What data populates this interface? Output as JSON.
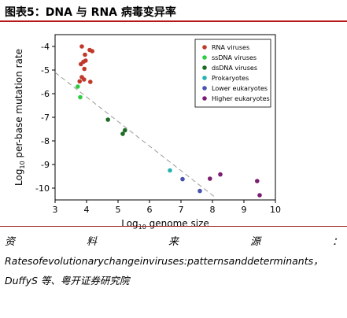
{
  "header": {
    "title": "图表5：DNA 与 RNA 病毒变异率"
  },
  "footer": {
    "source_label_chars": [
      "资",
      "料",
      "来",
      "源",
      "："
    ],
    "source_line1": "Ratesofevolutionarychangeinviruses:patternsanddeterminants，",
    "source_line2": "DuffyS 等、粤开证券研究院"
  },
  "chart_data": {
    "type": "scatter",
    "xlabel": "Log10 genome size",
    "ylabel": "Log10 per-base mutation rate",
    "xlim": [
      3,
      10
    ],
    "ylim": [
      -10.5,
      -3.5
    ],
    "xticks": [
      3,
      4,
      5,
      6,
      7,
      8,
      9,
      10
    ],
    "yticks": [
      -4,
      -5,
      -6,
      -7,
      -8,
      -9,
      -10
    ],
    "grid": false,
    "legend_position": "top-right",
    "trend_line": {
      "x": [
        3.0,
        8.05
      ],
      "y": [
        -5.1,
        -10.35
      ],
      "style": "dashed",
      "color": "#9a9a9a"
    },
    "series": [
      {
        "name": "RNA viruses",
        "color": "#c0392b",
        "points": [
          [
            3.85,
            -4.0
          ],
          [
            4.1,
            -4.15
          ],
          [
            4.18,
            -4.2
          ],
          [
            3.95,
            -4.35
          ],
          [
            3.9,
            -4.65
          ],
          [
            3.97,
            -4.6
          ],
          [
            3.82,
            -4.75
          ],
          [
            3.93,
            -4.95
          ],
          [
            3.85,
            -5.3
          ],
          [
            3.92,
            -5.4
          ],
          [
            4.12,
            -5.5
          ],
          [
            3.78,
            -5.48
          ]
        ]
      },
      {
        "name": "ssDNA viruses",
        "color": "#2ecc40",
        "points": [
          [
            3.72,
            -5.7
          ],
          [
            3.8,
            -6.15
          ]
        ]
      },
      {
        "name": "dsDNA viruses",
        "color": "#1e6b25",
        "points": [
          [
            4.68,
            -7.1
          ],
          [
            5.15,
            -7.7
          ],
          [
            5.22,
            -7.55
          ]
        ]
      },
      {
        "name": "Prokaryotes",
        "color": "#27b1b0",
        "points": [
          [
            6.65,
            -9.25
          ]
        ]
      },
      {
        "name": "Lower eukaryotes",
        "color": "#4a52b0",
        "points": [
          [
            7.05,
            -9.62
          ],
          [
            7.6,
            -10.12
          ]
        ]
      },
      {
        "name": "Higher eukaryotes",
        "color": "#7b1d70",
        "points": [
          [
            7.92,
            -9.6
          ],
          [
            8.25,
            -9.42
          ],
          [
            9.42,
            -9.7
          ],
          [
            9.5,
            -10.3
          ]
        ]
      }
    ]
  }
}
